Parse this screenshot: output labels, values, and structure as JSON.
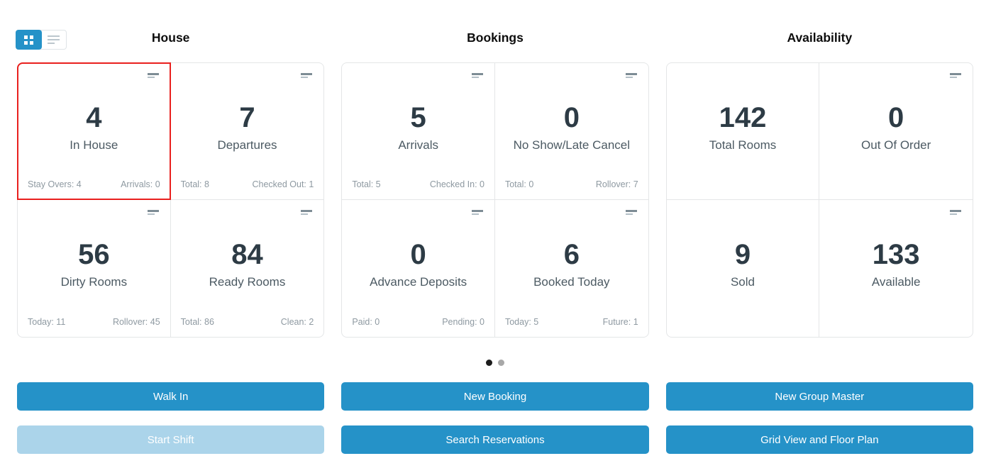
{
  "colors": {
    "accent": "#2592c8",
    "accent-disabled": "#abd4ea",
    "highlight": "#e9201e",
    "card-border": "#e4e6e7",
    "value-color": "#2d3b45",
    "label-color": "#4c5a63",
    "foot-color": "#8e99a1"
  },
  "view_toggle": {
    "grid_name": "grid view",
    "list_name": "list view"
  },
  "sections": [
    {
      "title": "House",
      "cards": [
        {
          "value": "4",
          "label": "In House",
          "foot_left": "Stay Overs: 4",
          "foot_right": "Arrivals: 0",
          "highlighted": true
        },
        {
          "value": "7",
          "label": "Departures",
          "foot_left": "Total: 8",
          "foot_right": "Checked Out: 1"
        },
        {
          "value": "56",
          "label": "Dirty Rooms",
          "foot_left": "Today: 11",
          "foot_right": "Rollover: 45"
        },
        {
          "value": "84",
          "label": "Ready Rooms",
          "foot_left": "Total: 86",
          "foot_right": "Clean: 2"
        }
      ]
    },
    {
      "title": "Bookings",
      "cards": [
        {
          "value": "5",
          "label": "Arrivals",
          "foot_left": "Total: 5",
          "foot_right": "Checked In: 0"
        },
        {
          "value": "0",
          "label": "No Show/Late Cancel",
          "foot_left": "Total: 0",
          "foot_right": "Rollover: 7"
        },
        {
          "value": "0",
          "label": "Advance Deposits",
          "foot_left": "Paid: 0",
          "foot_right": "Pending: 0"
        },
        {
          "value": "6",
          "label": "Booked Today",
          "foot_left": "Today: 5",
          "foot_right": "Future: 1"
        }
      ]
    },
    {
      "title": "Availability",
      "cards": [
        {
          "value": "142",
          "label": "Total Rooms"
        },
        {
          "value": "0",
          "label": "Out Of Order"
        },
        {
          "value": "9",
          "label": "Sold"
        },
        {
          "value": "133",
          "label": "Available"
        }
      ]
    }
  ],
  "pagination": {
    "page_count": 2,
    "active_page": 1
  },
  "actions": [
    {
      "label": "Walk In",
      "disabled": false
    },
    {
      "label": "New Booking",
      "disabled": false
    },
    {
      "label": "New Group Master",
      "disabled": false
    },
    {
      "label": "Start Shift",
      "disabled": true
    },
    {
      "label": "Search Reservations",
      "disabled": false
    },
    {
      "label": "Grid View and Floor Plan",
      "disabled": false
    }
  ]
}
